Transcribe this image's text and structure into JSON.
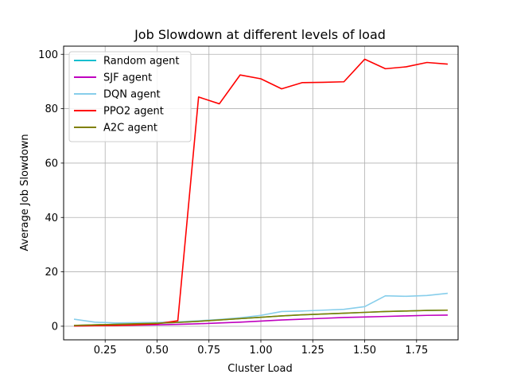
{
  "chart_data": {
    "type": "line",
    "title": "Job Slowdown at different levels of load",
    "xlabel": "Cluster Load",
    "ylabel": "Average Job Slowdown",
    "xlim": [
      0.05,
      1.95
    ],
    "ylim": [
      -5,
      103
    ],
    "xticks": [
      0.25,
      0.5,
      0.75,
      1.0,
      1.25,
      1.5,
      1.75
    ],
    "xtick_labels": [
      "0.25",
      "0.50",
      "0.75",
      "1.00",
      "1.25",
      "1.50",
      "1.75"
    ],
    "yticks": [
      0,
      20,
      40,
      60,
      80,
      100
    ],
    "ytick_labels": [
      "0",
      "20",
      "40",
      "60",
      "80",
      "100"
    ],
    "grid": true,
    "legend_position": "top-left",
    "x": [
      0.1,
      0.2,
      0.3,
      0.4,
      0.5,
      0.6,
      0.7,
      0.8,
      0.9,
      1.0,
      1.1,
      1.2,
      1.3,
      1.4,
      1.5,
      1.6,
      1.7,
      1.8,
      1.9
    ],
    "series": [
      {
        "name": "Random agent",
        "color": "#17becf",
        "values": [
          0.3,
          0.5,
          0.7,
          0.9,
          1.1,
          1.4,
          1.8,
          2.3,
          2.8,
          3.3,
          3.8,
          4.2,
          4.5,
          4.8,
          5.1,
          5.4,
          5.6,
          5.8,
          5.9
        ]
      },
      {
        "name": "SJF agent",
        "color": "#bf00bf",
        "values": [
          0.1,
          0.2,
          0.3,
          0.4,
          0.5,
          0.7,
          0.9,
          1.2,
          1.5,
          1.9,
          2.3,
          2.6,
          2.9,
          3.2,
          3.4,
          3.6,
          3.8,
          4.0,
          4.1
        ]
      },
      {
        "name": "DQN agent",
        "color": "#87ceeb",
        "values": [
          2.6,
          1.5,
          1.2,
          1.3,
          1.4,
          1.6,
          2.0,
          2.5,
          3.1,
          4.0,
          5.4,
          5.6,
          5.9,
          6.2,
          7.2,
          11.2,
          11.0,
          11.3,
          12.1
        ]
      },
      {
        "name": "PPO2 agent",
        "color": "#ff0000",
        "values": [
          0.1,
          0.2,
          0.3,
          0.5,
          0.9,
          2.0,
          84.3,
          81.8,
          92.4,
          91.0,
          87.3,
          89.6,
          89.7,
          89.9,
          98.2,
          94.7,
          95.4,
          97.0,
          96.4
        ]
      },
      {
        "name": "A2C agent",
        "color": "#808000",
        "values": [
          0.3,
          0.5,
          0.7,
          0.9,
          1.1,
          1.4,
          1.8,
          2.3,
          2.8,
          3.3,
          3.8,
          4.2,
          4.5,
          4.8,
          5.1,
          5.4,
          5.6,
          5.8,
          5.9
        ]
      }
    ]
  }
}
